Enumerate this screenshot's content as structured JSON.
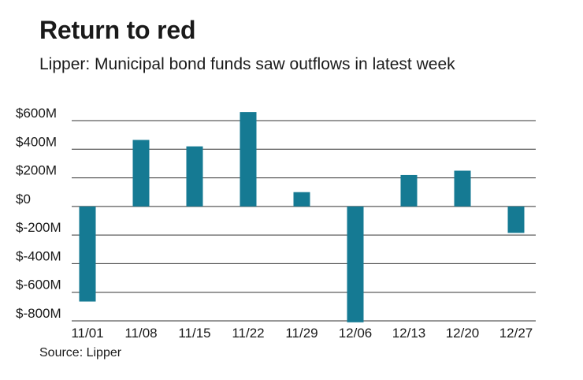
{
  "header": {
    "title": "Return to red",
    "subtitle": "Lipper: Municipal bond funds saw outflows in latest week"
  },
  "footer": {
    "source": "Source: Lipper"
  },
  "colors": {
    "bar": "#157a93",
    "grid": "#333333"
  },
  "chart_data": {
    "type": "bar",
    "categories": [
      "11/01",
      "11/08",
      "11/15",
      "11/22",
      "11/29",
      "12/06",
      "12/13",
      "12/20",
      "12/27"
    ],
    "values": [
      -665,
      465,
      420,
      660,
      100,
      -810,
      220,
      250,
      -185
    ],
    "value_unit": "millions of dollars",
    "title": "Return to red",
    "subtitle": "Lipper: Municipal bond funds saw outflows in latest week",
    "xlabel": "",
    "ylabel": "",
    "ylim": [
      -800,
      600
    ],
    "yticks": [
      600,
      400,
      200,
      0,
      -200,
      -400,
      -600,
      -800
    ],
    "ytick_labels": [
      "$600M",
      "$400M",
      "$200M",
      "$0",
      "$-200M",
      "$-400M",
      "$-600M",
      "$-800M"
    ],
    "grid": true,
    "legend": "none"
  }
}
